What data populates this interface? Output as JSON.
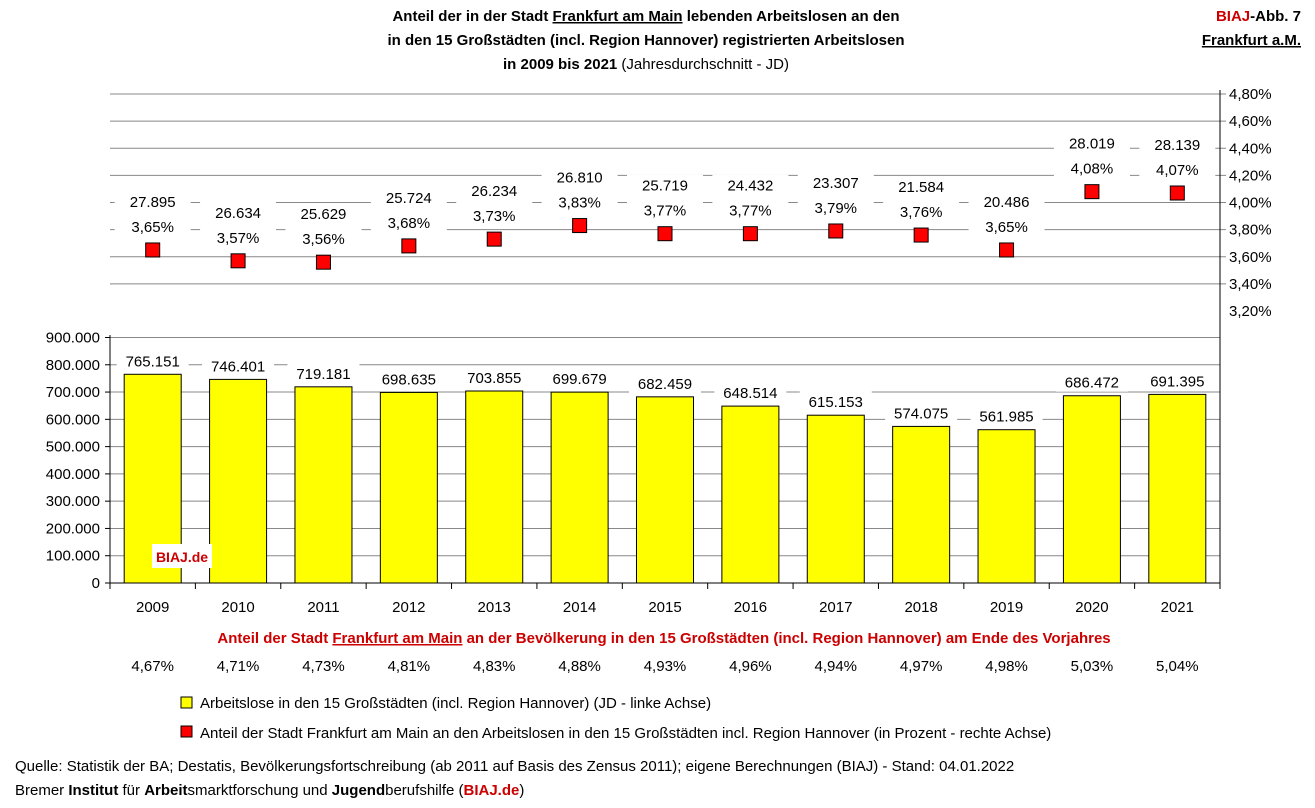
{
  "header": {
    "title_line1_a": "Anteil der in der Stadt ",
    "title_line1_u": "Frankfurt am Main",
    "title_line1_b": " lebenden Arbeitslosen an den",
    "title_line2": "in den 15 Großstädten (incl. Region Hannover) registrierten Arbeitslosen",
    "title_line3_bold": "in 2009 bis 2021",
    "title_line3_note": " (Jahresdurchschnitt - JD)",
    "badge_biaj": "BIAJ",
    "badge_abb": "-Abb. 7",
    "badge_city": "Frankfurt a.M."
  },
  "colors": {
    "bar_fill": "#ffff00",
    "marker_fill": "#ff0000",
    "accent_red": "#cc0000",
    "grid": "#888888"
  },
  "chart_data": {
    "type": "bar",
    "categories": [
      "2009",
      "2010",
      "2011",
      "2012",
      "2013",
      "2014",
      "2015",
      "2016",
      "2017",
      "2018",
      "2019",
      "2020",
      "2021"
    ],
    "series": [
      {
        "name": "Arbeitslose in den 15 Großstädten (incl. Region Hannover) (JD - linke Achse)",
        "type": "bar",
        "axis": "left",
        "values": [
          765151,
          746401,
          719181,
          698635,
          703855,
          699679,
          682459,
          648514,
          615153,
          574075,
          561985,
          686472,
          691395
        ],
        "labels": [
          "765.151",
          "746.401",
          "719.181",
          "698.635",
          "703.855",
          "699.679",
          "682.459",
          "648.514",
          "615.153",
          "574.075",
          "561.985",
          "686.472",
          "691.395"
        ]
      },
      {
        "name": "Anteil der Stadt Frankfurt am Main an den Arbeitslosen in den 15 Großstädten incl. Region Hannover (in Prozent - rechte Achse)",
        "type": "scatter",
        "axis": "right",
        "values": [
          3.65,
          3.57,
          3.56,
          3.68,
          3.73,
          3.83,
          3.77,
          3.77,
          3.79,
          3.76,
          3.65,
          4.08,
          4.07
        ],
        "labels": [
          "3,65%",
          "3,57%",
          "3,56%",
          "3,68%",
          "3,73%",
          "3,83%",
          "3,77%",
          "3,77%",
          "3,79%",
          "3,76%",
          "3,65%",
          "4,08%",
          "4,07%"
        ],
        "count_labels": [
          "27.895",
          "26.634",
          "25.629",
          "25.724",
          "26.234",
          "26.810",
          "25.719",
          "24.432",
          "23.307",
          "21.584",
          "20.486",
          "28.019",
          "28.139"
        ]
      }
    ],
    "left_axis": {
      "ylim": [
        0,
        900000
      ],
      "ticks": [
        0,
        100000,
        200000,
        300000,
        400000,
        500000,
        600000,
        700000,
        800000,
        900000
      ],
      "tick_labels": [
        "0",
        "100.000",
        "200.000",
        "300.000",
        "400.000",
        "500.000",
        "600.000",
        "700.000",
        "800.000",
        "900.000"
      ]
    },
    "right_axis": {
      "ylim": [
        3.2,
        4.8
      ],
      "ticks": [
        3.2,
        3.4,
        3.6,
        3.8,
        4.0,
        4.2,
        4.4,
        4.6,
        4.8
      ],
      "tick_labels": [
        "3,20%",
        "3,40%",
        "3,60%",
        "3,80%",
        "4,00%",
        "4,20%",
        "4,40%",
        "4,60%",
        "4,80%"
      ]
    },
    "grid": true,
    "legend_position": "bottom",
    "watermark": "BIAJ.de"
  },
  "population_share": {
    "heading_a": "Anteil der Stadt ",
    "heading_u": "Frankfurt am Main",
    "heading_b": " an der Bevölkerung in den 15 Großstädten (incl. Region Hannover) am Ende des Vorjahres",
    "values": [
      "4,67%",
      "4,71%",
      "4,73%",
      "4,81%",
      "4,83%",
      "4,88%",
      "4,93%",
      "4,96%",
      "4,94%",
      "4,97%",
      "4,98%",
      "5,03%",
      "5,04%"
    ]
  },
  "legend": {
    "bar": "Arbeitslose in den 15 Großstädten (incl. Region Hannover) (JD - linke Achse)",
    "marker": "Anteil der Stadt Frankfurt am Main an den Arbeitslosen in den 15 Großstädten incl. Region Hannover (in Prozent - rechte Achse)"
  },
  "footer": {
    "source": "Quelle: Statistik der BA; Destatis, Bevölkerungsfortschreibung (ab 2011 auf Basis des Zensus 2011); eigene Berechnungen (BIAJ) - Stand: 04.01.2022",
    "inst_1": "Bremer ",
    "inst_2": "Institut",
    "inst_3": " für ",
    "inst_4": "Arbeit",
    "inst_5": "smarktforschung und ",
    "inst_6": "Jugend",
    "inst_7": "berufshilfe (",
    "inst_8": "BIAJ.de",
    "inst_9": ")"
  }
}
